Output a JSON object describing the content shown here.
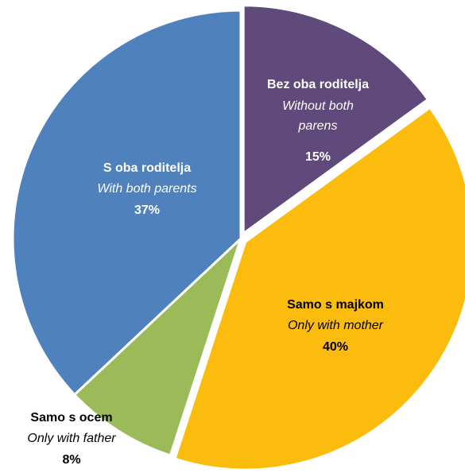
{
  "chart_data": {
    "type": "pie",
    "categories": [
      "Bez oba roditelja",
      "Samo s majkom",
      "Samo s ocem",
      "S oba roditelja"
    ],
    "categories_en": [
      "Without both parens",
      "Only with mother",
      "Only with father",
      "With both parents"
    ],
    "values": [
      15,
      40,
      8,
      37
    ],
    "value_labels": [
      "15%",
      "40%",
      "8%",
      "37%"
    ],
    "colors": [
      "#604a7b",
      "#fbbc0d",
      "#9bbb59",
      "#4f81bd"
    ]
  }
}
